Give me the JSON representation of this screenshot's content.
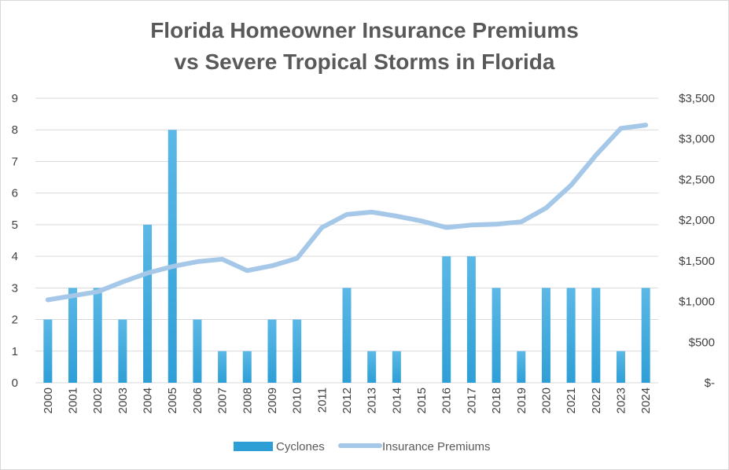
{
  "chart_data": {
    "type": "bar",
    "title_lines": [
      "Florida Homeowner Insurance Premiums",
      "vs Severe Tropical Storms in Florida"
    ],
    "categories": [
      "2000",
      "2001",
      "2002",
      "2003",
      "2004",
      "2005",
      "2006",
      "2007",
      "2008",
      "2009",
      "2010",
      "2011",
      "2012",
      "2013",
      "2014",
      "2015",
      "2016",
      "2017",
      "2018",
      "2019",
      "2020",
      "2021",
      "2022",
      "2023",
      "2024"
    ],
    "series": [
      {
        "name": "Cyclones",
        "type": "bar",
        "axis": "left",
        "color": "#2e9fd6",
        "values": [
          2,
          3,
          3,
          2,
          5,
          8,
          2,
          1,
          1,
          2,
          2,
          0,
          3,
          1,
          1,
          0,
          4,
          4,
          3,
          1,
          3,
          3,
          3,
          1,
          3
        ]
      },
      {
        "name": "Insurance Premiums",
        "type": "line",
        "axis": "right",
        "color": "#a5c8e8",
        "values": [
          1020,
          1070,
          1120,
          1240,
          1350,
          1430,
          1490,
          1520,
          1380,
          1440,
          1530,
          1910,
          2070,
          2100,
          2050,
          1990,
          1910,
          1940,
          1950,
          1980,
          2150,
          2430,
          2800,
          3130,
          3170
        ]
      }
    ],
    "y_left": {
      "min": 0,
      "max": 9,
      "ticks": [
        "0",
        "1",
        "2",
        "3",
        "4",
        "5",
        "6",
        "7",
        "8",
        "9"
      ]
    },
    "y_right": {
      "min": 0,
      "max": 3500,
      "ticks": [
        "$-",
        "$500",
        "$1,000",
        "$1,500",
        "$2,000",
        "$2,500",
        "$3,000",
        "$3,500"
      ]
    },
    "grid": true,
    "legend_position": "bottom"
  }
}
